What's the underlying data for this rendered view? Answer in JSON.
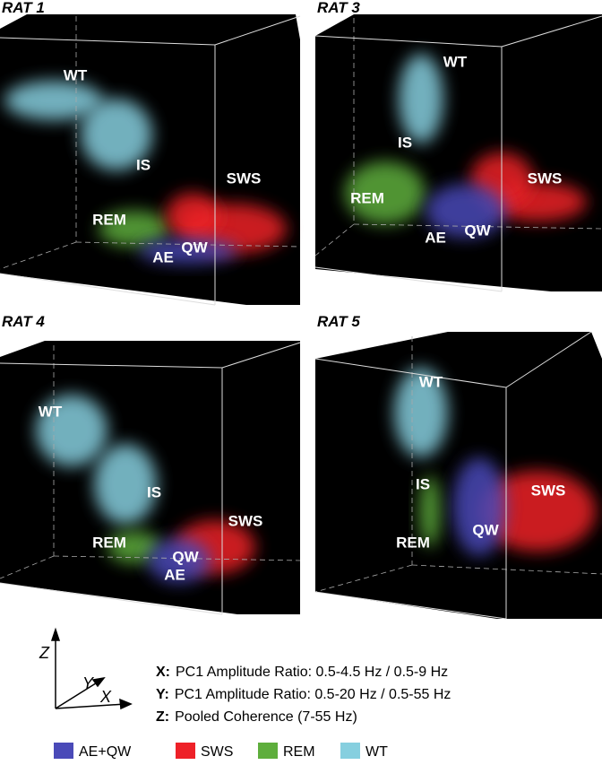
{
  "panels": [
    {
      "title": "RAT 1",
      "labels": [
        "WT",
        "IS",
        "SWS",
        "REM",
        "QW",
        "AE"
      ]
    },
    {
      "title": "RAT 3",
      "labels": [
        "WT",
        "IS",
        "SWS",
        "REM",
        "QW",
        "AE"
      ]
    },
    {
      "title": "RAT 4",
      "labels": [
        "WT",
        "IS",
        "SWS",
        "REM",
        "QW",
        "AE"
      ]
    },
    {
      "title": "RAT 5",
      "labels": [
        "WT",
        "IS",
        "SWS",
        "REM",
        "QW"
      ]
    }
  ],
  "axes": {
    "z": "Z",
    "y": "Y",
    "x": "X"
  },
  "axis_descriptions": [
    {
      "key": "X:",
      "text": "PC1 Amplitude Ratio: 0.5-4.5 Hz / 0.5-9 Hz"
    },
    {
      "key": "Y:",
      "text": "PC1 Amplitude Ratio: 0.5-20 Hz / 0.5-55 Hz"
    },
    {
      "key": "Z:",
      "text": "Pooled Coherence (7-55 Hz)"
    }
  ],
  "legend": [
    "AE+QW",
    "SWS",
    "REM",
    "WT"
  ]
}
